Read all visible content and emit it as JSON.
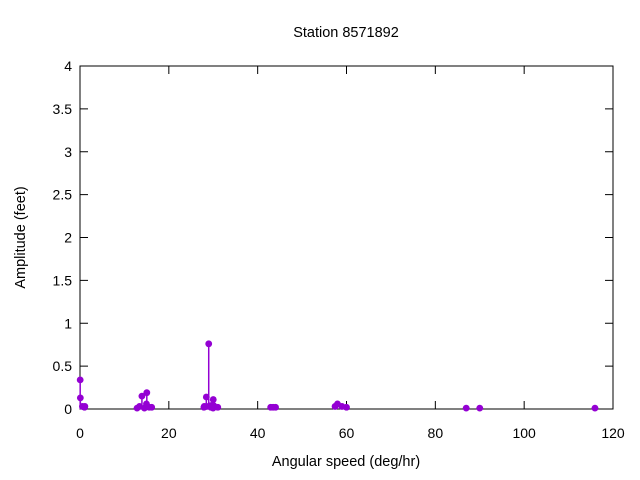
{
  "window": {
    "background": "#ffffff"
  },
  "chart_data": {
    "type": "scatter",
    "style": "points-with-impulses",
    "title": "Station 8571892",
    "xlabel": "Angular speed (deg/hr)",
    "ylabel": "Amplitude (feet)",
    "xlim": [
      0,
      120
    ],
    "ylim": [
      0,
      4
    ],
    "xticks": [
      0,
      20,
      40,
      60,
      80,
      100,
      120
    ],
    "yticks": [
      0,
      0.5,
      1,
      1.5,
      2,
      2.5,
      3,
      3.5,
      4
    ],
    "grid": false,
    "legend": "none",
    "tick_style": "inward-mirrored",
    "point_color": "#9400d3",
    "axis_color": "#000000",
    "text_color": "#000000",
    "background": "#ffffff",
    "points": [
      [
        0.04,
        0.34
      ],
      [
        0.08,
        0.13
      ],
      [
        0.54,
        0.03
      ],
      [
        1.02,
        0.02
      ],
      [
        1.1,
        0.03
      ],
      [
        12.85,
        0.01
      ],
      [
        13.4,
        0.03
      ],
      [
        13.94,
        0.15
      ],
      [
        14.5,
        0.01
      ],
      [
        14.96,
        0.06
      ],
      [
        15.04,
        0.19
      ],
      [
        15.59,
        0.02
      ],
      [
        16.14,
        0.02
      ],
      [
        27.9,
        0.02
      ],
      [
        27.97,
        0.03
      ],
      [
        28.44,
        0.14
      ],
      [
        28.51,
        0.03
      ],
      [
        28.98,
        0.76
      ],
      [
        29.46,
        0.02
      ],
      [
        29.53,
        0.04
      ],
      [
        29.96,
        0.01
      ],
      [
        30.0,
        0.11
      ],
      [
        30.08,
        0.04
      ],
      [
        31.02,
        0.02
      ],
      [
        42.93,
        0.02
      ],
      [
        43.48,
        0.02
      ],
      [
        44.03,
        0.02
      ],
      [
        57.42,
        0.03
      ],
      [
        57.97,
        0.06
      ],
      [
        58.98,
        0.03
      ],
      [
        60.0,
        0.02
      ],
      [
        86.95,
        0.01
      ],
      [
        90.0,
        0.01
      ],
      [
        115.94,
        0.01
      ]
    ]
  }
}
